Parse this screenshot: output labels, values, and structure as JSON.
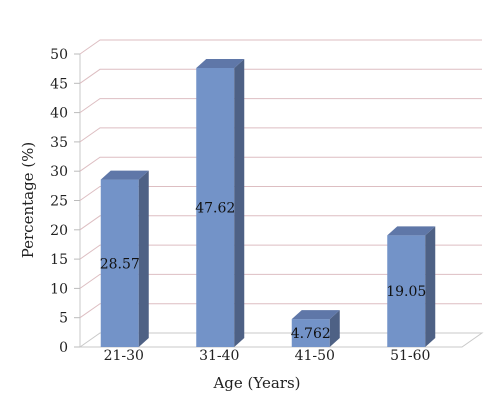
{
  "chart_data": {
    "type": "bar",
    "categories": [
      "21-30",
      "31-40",
      "41-50",
      "51-60"
    ],
    "values": [
      28.57,
      47.62,
      4.762,
      19.05
    ],
    "data_labels": [
      "28.57",
      "47.62",
      "4.762",
      "19.05"
    ],
    "title": "",
    "xlabel": "Age (Years)",
    "ylabel": "Percentage (%)",
    "ylim": [
      0,
      50
    ],
    "yticks": [
      0,
      5,
      10,
      15,
      20,
      25,
      30,
      35,
      40,
      45,
      50
    ],
    "grid": true,
    "style": "3d",
    "colors": {
      "bar_front": "#7393C8",
      "bar_side": "#4E6185",
      "bar_top": "#5F77A8",
      "gridline": "#DDBEC2",
      "floor": "#C9C9C9"
    }
  }
}
